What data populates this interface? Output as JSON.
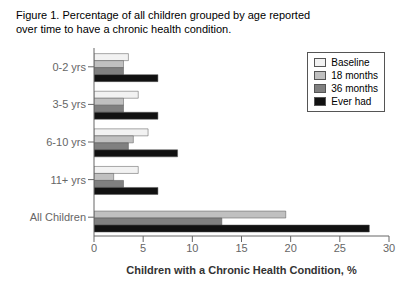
{
  "chart_data": {
    "type": "bar",
    "orientation": "horizontal",
    "title": "Figure 1. Percentage of all children grouped by age reported\nover time to have a chronic health condition.",
    "categories": [
      "All Children",
      "11+ yrs",
      "6-10 yrs",
      "3-5 yrs",
      "0-2 yrs"
    ],
    "series": [
      {
        "name": "Baseline",
        "color": "#f2f2f2",
        "values": [
          0.0,
          4.5,
          5.5,
          4.5,
          3.5
        ]
      },
      {
        "name": "18 months",
        "color": "#c0c0c0",
        "values": [
          19.5,
          2.0,
          4.0,
          3.0,
          3.0
        ]
      },
      {
        "name": "36 months",
        "color": "#808080",
        "values": [
          13.0,
          3.0,
          3.5,
          3.0,
          3.0
        ]
      },
      {
        "name": "Ever had",
        "color": "#111111",
        "values": [
          28.0,
          6.5,
          8.5,
          6.5,
          6.5
        ]
      }
    ],
    "xlim": [
      0,
      30
    ],
    "xticks": [
      0,
      5,
      10,
      15,
      20,
      25,
      30
    ],
    "xlabel": "Children with a Chronic Health Condition, %",
    "legend": "upper right",
    "grid": false
  }
}
